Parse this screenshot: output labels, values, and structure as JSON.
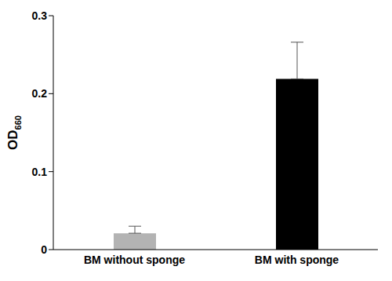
{
  "chart_data": {
    "type": "bar",
    "y_label": "OD660",
    "categories": [
      "BM without sponge",
      "BM with sponge"
    ],
    "values": [
      0.021,
      0.219
    ],
    "errors": [
      0.009,
      0.047
    ],
    "colors": [
      "#b3b3b3",
      "#000000"
    ],
    "ylim": [
      0,
      0.3
    ],
    "yticks": [
      0,
      0.1,
      0.2,
      0.3
    ],
    "grid": false
  }
}
